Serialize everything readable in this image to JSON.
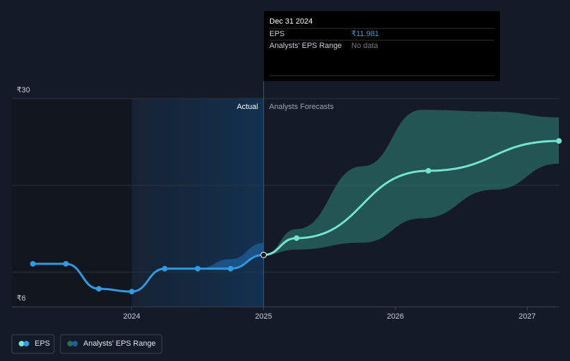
{
  "chart_data": {
    "type": "line",
    "xlim": [
      2023.09,
      2027.24
    ],
    "xticks": [
      2024,
      2025,
      2026,
      2027
    ],
    "ylim": [
      6,
      30
    ],
    "yticks": [
      {
        "value": 6,
        "label": "₹6"
      },
      {
        "value": 30,
        "label": "₹30"
      }
    ],
    "ygrid": [
      10,
      20,
      30
    ],
    "divider_x": 2025,
    "actual_label": "Actual",
    "forecast_label": "Analysts Forecasts",
    "series": [
      {
        "name": "EPS",
        "color": "#2f9be3",
        "forecast_color": "#72e6d3",
        "x": [
          2023.25,
          2023.5,
          2023.75,
          2024.0,
          2024.25,
          2024.5,
          2024.75,
          2025.0,
          2025.25,
          2026.25,
          2027.24
        ],
        "values": [
          10.96,
          10.96,
          8.08,
          7.76,
          10.4,
          10.4,
          10.4,
          11.981,
          13.92,
          21.68,
          25.12
        ]
      }
    ],
    "ranges": [
      {
        "name": "Analysts' EPS Range",
        "color": "#2a6a66",
        "x": [
          2025.0,
          2025.25,
          2025.75,
          2026.2,
          2026.75,
          2027.24
        ],
        "low": [
          11.981,
          12.6,
          13.4,
          16.2,
          19.5,
          22.5
        ],
        "high": [
          11.981,
          14.96,
          22.2,
          28.7,
          28.5,
          27.84
        ]
      },
      {
        "color": "#1f5f99",
        "x": [
          2024.5,
          2024.75,
          2025.0
        ],
        "low": [
          10.4,
          10.4,
          11.981
        ],
        "high": [
          10.4,
          11.5,
          13.36
        ]
      }
    ],
    "tooltip": {
      "date": "Dec 31 2024",
      "rows": [
        {
          "label": "EPS",
          "value": "₹11.981"
        },
        {
          "label": "Analysts' EPS Range",
          "value": "No data"
        }
      ]
    }
  }
}
